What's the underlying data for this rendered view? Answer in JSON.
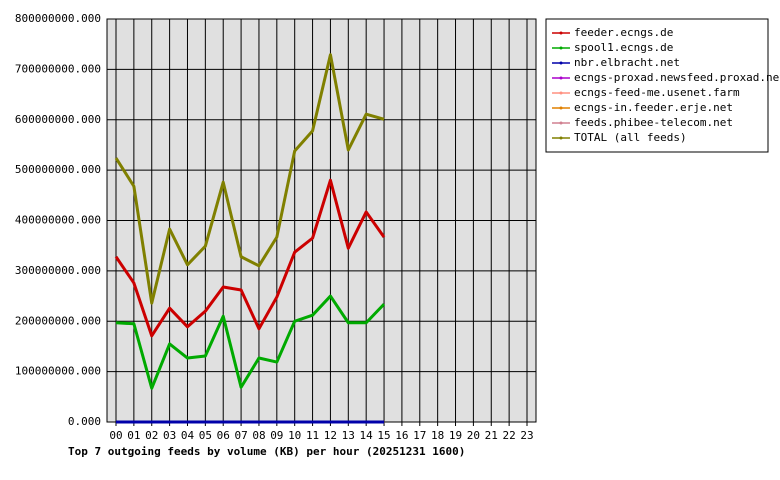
{
  "chart_data": {
    "type": "line",
    "title": "Top 7 outgoing feeds by volume (KB) per hour (20251231 1600)",
    "categories": [
      "00",
      "01",
      "02",
      "03",
      "04",
      "05",
      "06",
      "07",
      "08",
      "09",
      "10",
      "11",
      "12",
      "13",
      "14",
      "15",
      "16",
      "17",
      "18",
      "19",
      "20",
      "21",
      "22",
      "23"
    ],
    "series": [
      {
        "name": "feeder.ecngs.de",
        "color": "#cc0000",
        "values": [
          328000000,
          276000000,
          171000000,
          226000000,
          189000000,
          220000000,
          268000000,
          262000000,
          185000000,
          248000000,
          337000000,
          365000000,
          480000000,
          345000000,
          417000000,
          367000000,
          null,
          null,
          null,
          null,
          null,
          null,
          null,
          null
        ]
      },
      {
        "name": "spool1.ecngs.de",
        "color": "#00aa00",
        "values": [
          197000000,
          195000000,
          67000000,
          155000000,
          127000000,
          131000000,
          210000000,
          69000000,
          127000000,
          119000000,
          200000000,
          212000000,
          250000000,
          197000000,
          197000000,
          234000000,
          null,
          null,
          null,
          null,
          null,
          null,
          null,
          null
        ]
      },
      {
        "name": "nbr.elbracht.net",
        "color": "#0000aa",
        "values": [
          0,
          0,
          0,
          0,
          0,
          0,
          0,
          0,
          0,
          0,
          0,
          0,
          0,
          0,
          0,
          0,
          null,
          null,
          null,
          null,
          null,
          null,
          null,
          null
        ]
      },
      {
        "name": "ecngs-proxad.newsfeed.proxad.net",
        "color": "#aa00cc",
        "values": [
          0,
          0,
          0,
          0,
          0,
          0,
          0,
          0,
          0,
          0,
          0,
          0,
          0,
          0,
          0,
          0,
          null,
          null,
          null,
          null,
          null,
          null,
          null,
          null
        ]
      },
      {
        "name": "ecngs-feed-me.usenet.farm",
        "color": "#ff9080",
        "values": [
          0,
          0,
          0,
          0,
          0,
          0,
          0,
          0,
          0,
          0,
          0,
          0,
          0,
          0,
          0,
          0,
          null,
          null,
          null,
          null,
          null,
          null,
          null,
          null
        ]
      },
      {
        "name": "ecngs-in.feeder.erje.net",
        "color": "#e08000",
        "values": [
          0,
          0,
          0,
          0,
          0,
          0,
          0,
          0,
          0,
          0,
          0,
          0,
          0,
          0,
          0,
          0,
          null,
          null,
          null,
          null,
          null,
          null,
          null,
          null
        ]
      },
      {
        "name": "feeds.phibee-telecom.net",
        "color": "#d08090",
        "values": [
          0,
          0,
          0,
          0,
          0,
          0,
          0,
          0,
          0,
          0,
          0,
          0,
          0,
          0,
          0,
          0,
          null,
          null,
          null,
          null,
          null,
          null,
          null,
          null
        ]
      },
      {
        "name": "TOTAL (all feeds)",
        "color": "#808000",
        "values": [
          524000000,
          468000000,
          236000000,
          383000000,
          312000000,
          349000000,
          476000000,
          328000000,
          310000000,
          367000000,
          538000000,
          578000000,
          729000000,
          540000000,
          611000000,
          601000000,
          null,
          null,
          null,
          null,
          null,
          null,
          null,
          null
        ]
      }
    ],
    "ylim": [
      0,
      800000000
    ],
    "yticks": [
      {
        "value": 0,
        "label": "0.000"
      },
      {
        "value": 100000000,
        "label": "100000000.000"
      },
      {
        "value": 200000000,
        "label": "200000000.000"
      },
      {
        "value": 300000000,
        "label": "300000000.000"
      },
      {
        "value": 400000000,
        "label": "400000000.000"
      },
      {
        "value": 500000000,
        "label": "500000000.000"
      },
      {
        "value": 600000000,
        "label": "600000000.000"
      },
      {
        "value": 700000000,
        "label": "700000000.000"
      },
      {
        "value": 800000000,
        "label": "800000000.000"
      }
    ],
    "grid": true
  }
}
